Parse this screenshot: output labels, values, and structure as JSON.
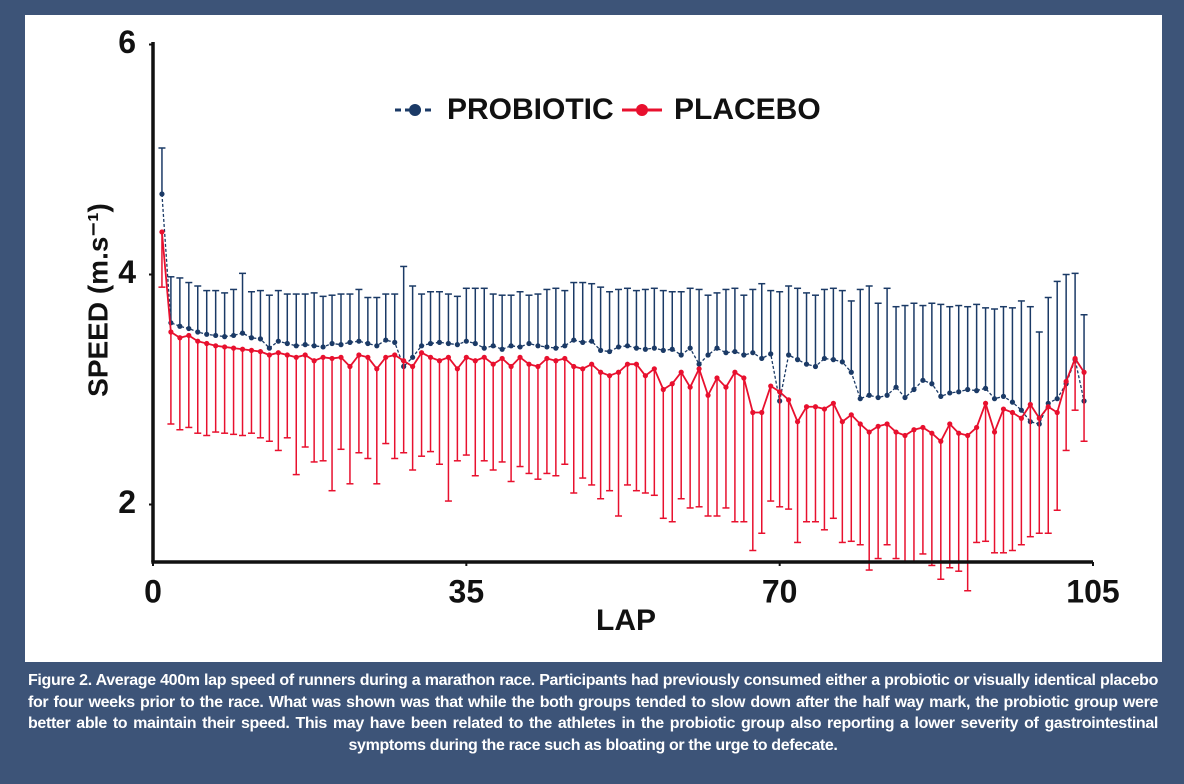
{
  "chart_data": {
    "type": "line",
    "x_label": "LAP",
    "y_label": "SPEED (m.s⁻¹)",
    "caption": "Figure 2. Average 400m lap speed of runners during a marathon race. Participants had previously consumed either a probiotic or visually identical placebo for four weeks prior to the race. What was shown was that while the both groups tended to slow down after the half way mark, the probiotic group were better able to maintain their speed. This may have been related to the athletes in the probiotic group also reporting a lower severity of gastrointestinal symptoms during the race such as bloating or the urge to defecate.",
    "xlim": [
      0,
      105
    ],
    "xticks": [
      0,
      35,
      70,
      105
    ],
    "ylim": [
      1.5,
      6
    ],
    "yticks": [
      2,
      4,
      6
    ],
    "x": [
      1,
      2,
      3,
      4,
      5,
      6,
      7,
      8,
      9,
      10,
      11,
      12,
      13,
      14,
      15,
      16,
      17,
      18,
      19,
      20,
      21,
      22,
      23,
      24,
      25,
      26,
      27,
      28,
      29,
      30,
      31,
      32,
      33,
      34,
      35,
      36,
      37,
      38,
      39,
      40,
      41,
      42,
      43,
      44,
      45,
      46,
      47,
      48,
      49,
      50,
      51,
      52,
      53,
      54,
      55,
      56,
      57,
      58,
      59,
      60,
      61,
      62,
      63,
      64,
      65,
      66,
      67,
      68,
      69,
      70,
      71,
      72,
      73,
      74,
      75,
      76,
      77,
      78,
      79,
      80,
      81,
      82,
      83,
      84,
      85,
      86,
      87,
      88,
      89,
      90,
      91,
      92,
      93,
      94,
      95,
      96,
      97,
      98,
      99,
      100,
      101,
      102,
      103,
      104
    ],
    "series": [
      {
        "name": "PROBIOTIC",
        "color": "#1b3a66",
        "dashed": true,
        "error_direction": "up",
        "values": [
          4.7,
          3.58,
          3.55,
          3.53,
          3.5,
          3.48,
          3.47,
          3.46,
          3.47,
          3.49,
          3.45,
          3.44,
          3.36,
          3.42,
          3.4,
          3.38,
          3.39,
          3.38,
          3.37,
          3.4,
          3.39,
          3.41,
          3.42,
          3.4,
          3.38,
          3.43,
          3.41,
          3.2,
          3.28,
          3.38,
          3.4,
          3.41,
          3.4,
          3.39,
          3.42,
          3.4,
          3.36,
          3.38,
          3.35,
          3.38,
          3.37,
          3.4,
          3.38,
          3.37,
          3.36,
          3.38,
          3.43,
          3.41,
          3.42,
          3.34,
          3.33,
          3.37,
          3.38,
          3.36,
          3.35,
          3.36,
          3.34,
          3.35,
          3.3,
          3.36,
          3.22,
          3.3,
          3.36,
          3.32,
          3.33,
          3.3,
          3.32,
          3.27,
          3.31,
          2.9,
          3.3,
          3.26,
          3.22,
          3.2,
          3.27,
          3.26,
          3.24,
          3.15,
          2.92,
          2.95,
          2.93,
          2.95,
          3.02,
          2.93,
          3.0,
          3.08,
          3.05,
          2.94,
          2.97,
          2.98,
          3.0,
          2.99,
          3.01,
          2.92,
          2.94,
          2.89,
          2.82,
          2.72,
          2.7,
          2.88,
          2.92,
          3.05,
          3.26,
          2.9
        ],
        "errors": [
          0.4,
          0.4,
          0.42,
          0.4,
          0.4,
          0.38,
          0.39,
          0.38,
          0.4,
          0.52,
          0.4,
          0.42,
          0.46,
          0.44,
          0.43,
          0.45,
          0.44,
          0.46,
          0.44,
          0.42,
          0.44,
          0.42,
          0.45,
          0.4,
          0.42,
          0.4,
          0.42,
          0.87,
          0.62,
          0.45,
          0.45,
          0.44,
          0.43,
          0.42,
          0.46,
          0.48,
          0.52,
          0.45,
          0.47,
          0.44,
          0.48,
          0.42,
          0.45,
          0.5,
          0.52,
          0.48,
          0.5,
          0.52,
          0.5,
          0.55,
          0.52,
          0.5,
          0.5,
          0.5,
          0.52,
          0.52,
          0.52,
          0.5,
          0.55,
          0.52,
          0.65,
          0.52,
          0.48,
          0.55,
          0.55,
          0.52,
          0.55,
          0.65,
          0.55,
          0.95,
          0.6,
          0.62,
          0.62,
          0.62,
          0.6,
          0.62,
          0.62,
          0.62,
          0.95,
          0.95,
          0.82,
          0.93,
          0.7,
          0.8,
          0.75,
          0.65,
          0.7,
          0.8,
          0.75,
          0.75,
          0.72,
          0.75,
          0.7,
          0.78,
          0.78,
          0.82,
          0.95,
          1.0,
          0.8,
          0.92,
          1.02,
          0.95,
          0.75,
          0.75
        ]
      },
      {
        "name": "PLACEBO",
        "color": "#e8102e",
        "dashed": false,
        "error_direction": "down",
        "values": [
          4.37,
          3.5,
          3.45,
          3.47,
          3.42,
          3.4,
          3.38,
          3.37,
          3.36,
          3.35,
          3.34,
          3.33,
          3.3,
          3.32,
          3.3,
          3.28,
          3.3,
          3.25,
          3.28,
          3.27,
          3.28,
          3.2,
          3.3,
          3.28,
          3.18,
          3.28,
          3.3,
          3.25,
          3.2,
          3.32,
          3.28,
          3.25,
          3.28,
          3.18,
          3.28,
          3.25,
          3.28,
          3.22,
          3.27,
          3.2,
          3.28,
          3.22,
          3.2,
          3.27,
          3.25,
          3.27,
          3.2,
          3.18,
          3.22,
          3.15,
          3.12,
          3.15,
          3.22,
          3.22,
          3.12,
          3.18,
          3.0,
          3.05,
          3.15,
          3.02,
          3.18,
          2.95,
          3.1,
          3.02,
          3.15,
          3.1,
          2.8,
          2.8,
          3.03,
          2.98,
          2.91,
          2.72,
          2.85,
          2.85,
          2.83,
          2.88,
          2.72,
          2.78,
          2.7,
          2.63,
          2.68,
          2.7,
          2.63,
          2.6,
          2.65,
          2.67,
          2.62,
          2.55,
          2.7,
          2.62,
          2.6,
          2.67,
          2.88,
          2.63,
          2.83,
          2.8,
          2.75,
          2.87,
          2.75,
          2.85,
          2.8,
          3.07,
          3.27,
          3.15
        ],
        "errors": [
          0.48,
          0.8,
          0.8,
          0.8,
          0.8,
          0.8,
          0.75,
          0.75,
          0.75,
          0.75,
          0.72,
          0.75,
          0.75,
          0.85,
          0.72,
          1.02,
          0.8,
          0.88,
          0.9,
          1.15,
          0.8,
          1.02,
          0.85,
          0.88,
          1.0,
          0.75,
          0.9,
          0.8,
          0.9,
          0.9,
          0.82,
          0.9,
          1.25,
          0.8,
          0.85,
          1.0,
          0.9,
          0.92,
          0.9,
          1.0,
          0.95,
          0.95,
          0.98,
          1.0,
          1.0,
          0.92,
          1.1,
          0.95,
          1.05,
          1.1,
          1.0,
          1.25,
          1.05,
          1.1,
          1.02,
          1.1,
          1.12,
          1.2,
          1.1,
          1.05,
          1.2,
          1.05,
          1.2,
          1.05,
          1.3,
          1.25,
          1.2,
          1.05,
          1.0,
          1.0,
          0.95,
          1.05,
          1.0,
          1.0,
          1.05,
          1.0,
          1.05,
          1.1,
          1.05,
          1.2,
          1.15,
          1.05,
          1.1,
          1.1,
          1.15,
          1.1,
          1.15,
          1.2,
          1.25,
          1.2,
          1.35,
          1.0,
          1.2,
          1.05,
          1.25,
          1.2,
          1.1,
          1.15,
          1.0,
          1.1,
          0.85,
          0.6,
          0.45,
          0.6
        ]
      }
    ]
  }
}
